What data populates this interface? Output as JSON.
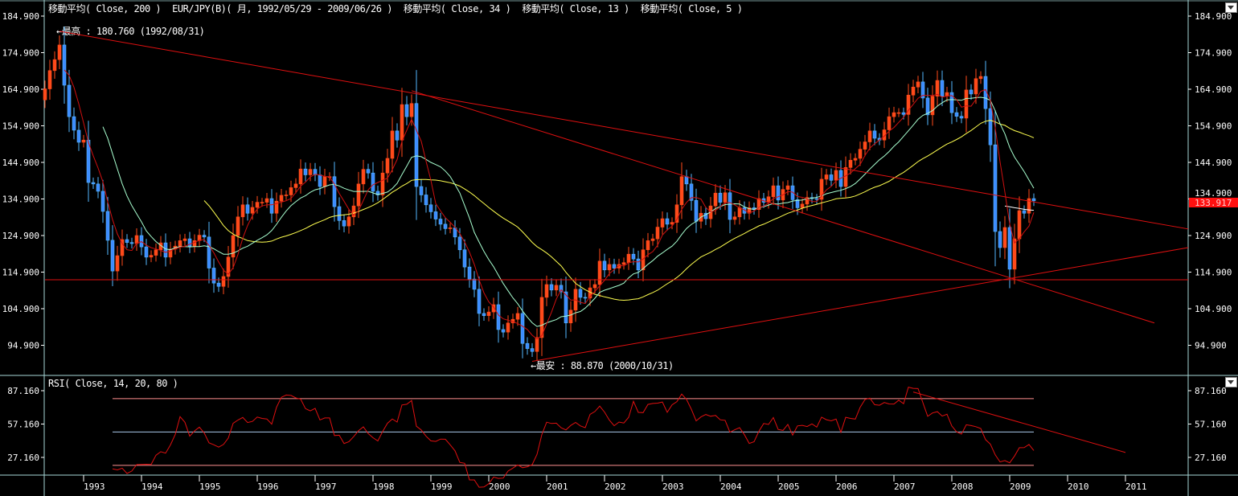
{
  "header": {
    "ma200": "移動平均( Close, 200 )",
    "instrument": "EUR/JPY(B)( 月, 1992/05/29 - 2009/06/26 )",
    "ma34": "移動平均( Close, 34 )",
    "ma13": "移動平均( Close, 13 )",
    "ma5": "移動平均( Close, 5 )"
  },
  "rsi_header": "RSI( Close, 14, 20, 80 )",
  "annotations": {
    "high": "←最高 : 180.760 (1992/08/31)",
    "low": "←最安 : 88.870 (2000/10/31)"
  },
  "current_price_label": "133.917",
  "colors": {
    "up": "#ff4a1a",
    "down": "#3d8bff",
    "down_wick": "#55b8ff",
    "ma5": "#d01010",
    "ma13": "#a8ffd0",
    "ma34": "#ffff50",
    "ma200": "#ffffff",
    "trendline": "#e01010",
    "axis": "#a8d8d8",
    "rsi": "#e01010",
    "rsi_levels": "#ff9090",
    "rsi_mid": "#a8c8e8",
    "badge": "#ff1010"
  },
  "chart_data": [
    {
      "type": "candlestick",
      "interval": "monthly",
      "start_month": "1992-05",
      "closes": [
        165,
        170,
        173,
        177,
        166,
        157.4,
        153.7,
        150.4,
        151,
        139.4,
        139,
        137,
        131.5,
        123.6,
        115.2,
        119.4,
        123.8,
        123,
        122.7,
        124.9,
        121.8,
        119,
        119.5,
        121,
        122.9,
        119,
        121.2,
        122,
        123.5,
        124,
        122,
        123.5,
        125,
        124.5,
        116,
        111.9,
        111,
        113.7,
        119,
        124.9,
        130,
        133.3,
        131,
        132.6,
        134,
        134,
        135,
        131,
        134.3,
        135.9,
        136,
        138,
        139,
        143.1,
        141.5,
        143,
        141.5,
        138.3,
        141,
        141,
        132.8,
        129,
        127.5,
        130,
        133,
        139,
        143,
        142,
        137,
        136,
        142,
        146,
        153.5,
        151,
        160.7,
        157.4,
        161,
        138.3,
        136,
        133.3,
        131.4,
        129.4,
        128,
        126.8,
        127,
        124.5,
        121,
        116.3,
        113,
        110.2,
        103.6,
        103,
        104,
        106,
        99.2,
        98.5,
        101,
        102,
        103.6,
        95.4,
        94,
        93.2,
        97,
        108,
        111.5,
        110,
        111.3,
        109.5,
        101,
        104.5,
        110.2,
        108,
        107.8,
        110.6,
        111.5,
        117.9,
        115.5,
        117,
        116,
        117,
        117.5,
        119.8,
        118.5,
        115.5,
        121,
        123.5,
        124,
        127.2,
        129.5,
        128,
        128.5,
        133.3,
        141,
        139,
        134.5,
        128.8,
        131,
        129.5,
        133,
        136.5,
        134,
        136.6,
        129.3,
        130,
        132.5,
        131,
        132.5,
        132,
        135,
        134,
        135.5,
        138.5,
        134.6,
        137.5,
        138.5,
        134.7,
        132.5,
        133.5,
        135.3,
        135,
        134.8,
        140.3,
        141.5,
        140,
        142.7,
        138.3,
        143.5,
        145.5,
        146,
        148.5,
        150.5,
        153.5,
        151.5,
        151,
        153.8,
        157.4,
        158.5,
        158.5,
        158,
        163.3,
        165.5,
        166.9,
        162.5,
        157.9,
        163,
        167.3,
        163,
        164,
        158.5,
        157.5,
        157,
        164.7,
        163.6,
        167.8,
        168.4,
        159.6,
        149.7,
        126,
        121.6,
        127.1,
        115.7,
        124,
        131.7,
        131,
        135,
        134.4
      ],
      "moving_averages": [
        200,
        34,
        13,
        5
      ],
      "y_ticks": [
        184.9,
        174.9,
        164.9,
        154.9,
        144.9,
        134.9,
        124.9,
        114.9,
        104.9,
        94.9
      ],
      "ylim": [
        86,
        187
      ],
      "x_ticks": [
        "1993",
        "1994",
        "1995",
        "1996",
        "1997",
        "1998",
        "1999",
        "2000",
        "2001",
        "2002",
        "2003",
        "2004",
        "2005",
        "2006",
        "2007",
        "2008",
        "2009",
        "2010",
        "2011"
      ],
      "trendlines": [
        {
          "from": [
            "1992-08",
            180.76
          ],
          "to": [
            "2012-02",
            126.7
          ]
        },
        {
          "from": [
            "1998-09",
            164.5
          ],
          "to": [
            "2011-07",
            101
          ]
        },
        {
          "from": [
            "2000-10",
            90.5
          ],
          "to": [
            "2012-02",
            121.6
          ]
        },
        {
          "from": [
            "1992-05",
            112.8
          ],
          "to": [
            "2012-02",
            112.8
          ]
        }
      ]
    },
    {
      "type": "line",
      "indicator": "RSI",
      "period": 14,
      "levels": [
        20,
        50,
        80
      ],
      "y_ticks": [
        87.16,
        57.16,
        27.16
      ],
      "trendlines": [
        {
          "from": [
            "2007-05",
            86
          ],
          "to": [
            "2011-01",
            31.6
          ]
        }
      ]
    }
  ]
}
